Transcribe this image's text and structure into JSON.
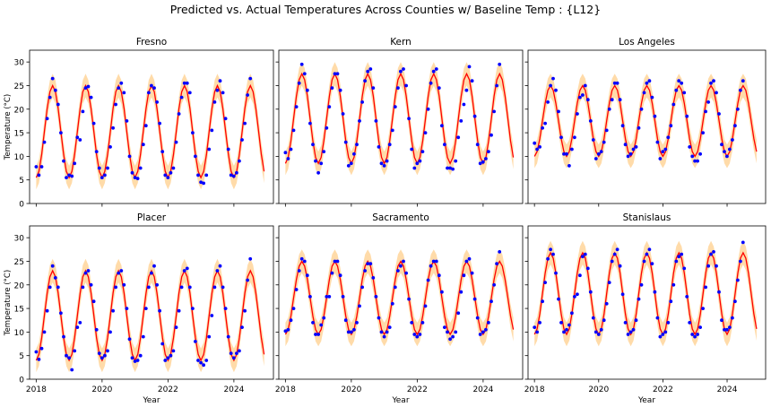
{
  "figure": {
    "title": "Predicted vs. Actual Temperatures Across Counties w/ Baseline Temp : {L12}",
    "xlabel": "Year",
    "ylabel": "Temperature (°C)",
    "colors": {
      "predicted_line": "#ff0000",
      "interval_band": "#ffd59a",
      "actual_points": "#0000ff"
    }
  },
  "chart_data": [
    {
      "type": "line",
      "title": "Fresno",
      "xlim": [
        2017.8,
        2025.2
      ],
      "ylim": [
        0,
        32.5
      ],
      "xticks": [
        2018,
        2020,
        2022,
        2024
      ],
      "yticks": [
        0,
        5,
        10,
        15,
        20,
        25,
        30
      ],
      "xlabel": "",
      "ylabel": "Temperature (°C)",
      "model": {
        "start": 2018.0,
        "end": 2024.92,
        "min_temp": 5.5,
        "max_temp": 25.0,
        "peak_month": 7,
        "band_halfwidth": 2.5
      },
      "series": [
        {
          "name": "Predicted",
          "style": "line",
          "description": "seasonal sinusoid (monthly)"
        },
        {
          "name": "Prediction interval",
          "style": "band"
        },
        {
          "name": "Actual",
          "style": "points",
          "x_start": 2018.0,
          "x_step": 0.0833,
          "values": [
            7.8,
            6.0,
            7.8,
            13.0,
            18.0,
            22.5,
            26.5,
            24.0,
            21.0,
            15.0,
            9.0,
            5.5,
            6.0,
            5.8,
            8.5,
            14.0,
            13.5,
            19.5,
            24.5,
            24.8,
            22.5,
            17.0,
            11.0,
            7.5,
            5.5,
            6.0,
            7.5,
            12.0,
            16.0,
            21.0,
            24.5,
            25.5,
            23.5,
            17.5,
            10.0,
            6.5,
            5.5,
            5.3,
            7.5,
            12.5,
            16.5,
            23.5,
            25.0,
            24.5,
            21.5,
            17.0,
            11.0,
            6.0,
            5.5,
            6.5,
            7.5,
            13.0,
            19.0,
            22.5,
            25.5,
            25.5,
            23.5,
            15.0,
            10.0,
            6.0,
            4.5,
            4.3,
            6.0,
            11.5,
            15.5,
            21.5,
            24.0,
            26.0,
            23.5,
            18.0,
            11.5,
            6.0,
            5.8,
            6.5,
            9.0,
            13.5,
            17.0,
            23.0,
            26.5
          ]
        }
      ]
    },
    {
      "type": "line",
      "title": "Kern",
      "xlim": [
        2017.8,
        2025.2
      ],
      "ylim": [
        0,
        32.5
      ],
      "xticks": [
        2018,
        2020,
        2022,
        2024
      ],
      "yticks": [
        0,
        5,
        10,
        15,
        20,
        25,
        30
      ],
      "xlabel": "",
      "ylabel": "",
      "model": {
        "start": 2018.0,
        "end": 2024.92,
        "min_temp": 8.5,
        "max_temp": 27.5,
        "peak_month": 7,
        "band_halfwidth": 2.5
      },
      "series": [
        {
          "name": "Predicted",
          "style": "line",
          "description": "seasonal sinusoid (monthly)"
        },
        {
          "name": "Prediction interval",
          "style": "band"
        },
        {
          "name": "Actual",
          "style": "points",
          "x_start": 2018.0,
          "x_step": 0.0833,
          "values": [
            10.8,
            9.5,
            11.5,
            15.5,
            20.5,
            25.5,
            29.5,
            27.5,
            24.0,
            17.0,
            12.5,
            9.0,
            6.5,
            8.5,
            11.0,
            16.0,
            20.5,
            24.5,
            27.5,
            27.5,
            24.0,
            19.0,
            13.0,
            8.0,
            8.5,
            10.5,
            12.5,
            17.5,
            21.5,
            26.0,
            28.0,
            28.5,
            24.5,
            17.5,
            12.0,
            8.5,
            8.0,
            9.0,
            12.5,
            15.5,
            20.5,
            24.5,
            28.0,
            28.5,
            25.0,
            18.0,
            11.5,
            7.5,
            8.5,
            9.0,
            11.0,
            15.0,
            20.0,
            25.5,
            28.0,
            28.5,
            24.5,
            16.5,
            12.5,
            7.5,
            7.5,
            7.3,
            9.0,
            14.0,
            17.5,
            21.0,
            24.0,
            29.0,
            26.0,
            18.5,
            12.5,
            8.5,
            8.8,
            9.5,
            11.0,
            14.5,
            19.5,
            25.0,
            29.5
          ]
        }
      ]
    },
    {
      "type": "line",
      "title": "Los Angeles",
      "xlim": [
        2017.8,
        2025.2
      ],
      "ylim": [
        0,
        32.5
      ],
      "xticks": [
        2018,
        2020,
        2022,
        2024
      ],
      "yticks": [
        0,
        5,
        10,
        15,
        20,
        25,
        30
      ],
      "xlabel": "",
      "ylabel": "",
      "model": {
        "start": 2018.0,
        "end": 2024.92,
        "min_temp": 10.0,
        "max_temp": 25.0,
        "peak_month": 7,
        "band_halfwidth": 2.5
      },
      "series": [
        {
          "name": "Predicted",
          "style": "line",
          "description": "seasonal sinusoid (monthly)"
        },
        {
          "name": "Prediction interval",
          "style": "band"
        },
        {
          "name": "Actual",
          "style": "points",
          "x_start": 2018.0,
          "x_step": 0.0833,
          "values": [
            12.8,
            11.5,
            12.0,
            16.0,
            17.0,
            21.5,
            25.0,
            26.5,
            24.0,
            19.5,
            14.0,
            10.5,
            10.5,
            8.0,
            11.5,
            14.0,
            19.0,
            22.5,
            23.0,
            25.0,
            22.0,
            17.5,
            13.5,
            9.5,
            10.5,
            11.0,
            13.0,
            15.5,
            20.0,
            22.0,
            25.5,
            25.5,
            22.0,
            16.5,
            12.5,
            10.0,
            10.5,
            11.5,
            12.0,
            16.0,
            20.0,
            23.5,
            25.5,
            26.0,
            22.5,
            18.5,
            13.0,
            9.5,
            11.0,
            11.5,
            14.0,
            16.5,
            21.0,
            24.0,
            26.0,
            25.5,
            23.5,
            18.5,
            12.0,
            10.0,
            9.0,
            9.0,
            10.5,
            15.0,
            19.5,
            21.5,
            25.5,
            26.0,
            23.5,
            19.0,
            12.5,
            11.0,
            10.0,
            11.5,
            13.5,
            16.5,
            20.0,
            24.0,
            26.0
          ]
        }
      ]
    },
    {
      "type": "line",
      "title": "Placer",
      "xlim": [
        2017.8,
        2025.2
      ],
      "ylim": [
        0,
        32.5
      ],
      "xticks": [
        2018,
        2020,
        2022,
        2024
      ],
      "yticks": [
        0,
        5,
        10,
        15,
        20,
        25,
        30
      ],
      "xlabel": "Year",
      "ylabel": "Temperature (°C)",
      "model": {
        "start": 2018.0,
        "end": 2024.92,
        "min_temp": 4.0,
        "max_temp": 23.0,
        "peak_month": 7,
        "band_halfwidth": 2.5
      },
      "series": [
        {
          "name": "Predicted",
          "style": "line",
          "description": "seasonal sinusoid (monthly)"
        },
        {
          "name": "Prediction interval",
          "style": "band"
        },
        {
          "name": "Actual",
          "style": "points",
          "x_start": 2018.0,
          "x_step": 0.0833,
          "values": [
            5.8,
            4.2,
            6.5,
            10.0,
            14.5,
            19.5,
            24.0,
            21.5,
            19.5,
            14.0,
            9.0,
            5.0,
            4.5,
            2.0,
            6.0,
            11.0,
            12.0,
            19.5,
            22.5,
            23.0,
            20.0,
            16.5,
            10.5,
            5.5,
            4.5,
            5.0,
            6.0,
            10.0,
            14.5,
            19.5,
            22.5,
            23.0,
            20.0,
            15.0,
            8.5,
            4.5,
            3.8,
            4.0,
            5.0,
            9.0,
            15.0,
            19.5,
            22.5,
            24.0,
            20.0,
            14.5,
            7.5,
            4.0,
            4.5,
            5.0,
            6.0,
            11.0,
            14.5,
            19.5,
            23.0,
            23.5,
            19.5,
            15.0,
            8.0,
            4.0,
            3.5,
            3.0,
            4.0,
            9.0,
            13.5,
            19.5,
            23.0,
            24.0,
            19.5,
            15.0,
            9.0,
            5.5,
            4.5,
            5.5,
            6.0,
            11.0,
            14.5,
            21.0,
            25.5
          ]
        }
      ]
    },
    {
      "type": "line",
      "title": "Sacramento",
      "xlim": [
        2017.8,
        2025.2
      ],
      "ylim": [
        0,
        32.5
      ],
      "xticks": [
        2018,
        2020,
        2022,
        2024
      ],
      "yticks": [
        0,
        5,
        10,
        15,
        20,
        25,
        30
      ],
      "xlabel": "Year",
      "ylabel": "",
      "model": {
        "start": 2018.0,
        "end": 2024.92,
        "min_temp": 9.5,
        "max_temp": 25.0,
        "peak_month": 7,
        "band_halfwidth": 2.5
      },
      "series": [
        {
          "name": "Predicted",
          "style": "line",
          "description": "seasonal sinusoid (monthly)"
        },
        {
          "name": "Prediction interval",
          "style": "band"
        },
        {
          "name": "Actual",
          "style": "points",
          "x_start": 2018.0,
          "x_step": 0.0833,
          "values": [
            10.2,
            10.5,
            12.5,
            15.0,
            19.0,
            23.0,
            25.5,
            25.0,
            22.0,
            17.5,
            12.0,
            9.5,
            9.5,
            11.5,
            13.0,
            17.5,
            17.5,
            22.5,
            25.0,
            25.0,
            22.0,
            17.5,
            12.5,
            10.0,
            10.0,
            10.5,
            12.0,
            15.5,
            19.5,
            23.0,
            24.5,
            24.5,
            21.5,
            17.5,
            13.0,
            10.0,
            9.0,
            10.0,
            11.0,
            16.0,
            19.5,
            23.0,
            24.0,
            25.0,
            22.5,
            17.0,
            12.0,
            9.5,
            9.0,
            9.5,
            12.0,
            15.5,
            21.0,
            24.0,
            25.0,
            25.0,
            22.0,
            18.5,
            11.0,
            10.0,
            8.5,
            9.0,
            10.0,
            14.0,
            18.5,
            22.0,
            25.0,
            25.5,
            22.5,
            17.0,
            13.0,
            9.5,
            10.0,
            10.5,
            12.0,
            16.5,
            20.0,
            24.5,
            27.0
          ]
        }
      ]
    },
    {
      "type": "line",
      "title": "Stanislaus",
      "xlim": [
        2017.8,
        2025.2
      ],
      "ylim": [
        0,
        32.5
      ],
      "xticks": [
        2018,
        2020,
        2022,
        2024
      ],
      "yticks": [
        0,
        5,
        10,
        15,
        20,
        25,
        30
      ],
      "xlabel": "Year",
      "ylabel": "",
      "model": {
        "start": 2018.0,
        "end": 2024.92,
        "min_temp": 9.5,
        "max_temp": 26.8,
        "peak_month": 7,
        "band_halfwidth": 2.5
      },
      "series": [
        {
          "name": "Predicted",
          "style": "line",
          "description": "seasonal sinusoid (monthly)"
        },
        {
          "name": "Prediction interval",
          "style": "band"
        },
        {
          "name": "Actual",
          "style": "points",
          "x_start": 2018.0,
          "x_step": 0.0833,
          "values": [
            11.0,
            10.0,
            12.0,
            16.5,
            20.5,
            25.5,
            27.5,
            26.5,
            22.5,
            17.0,
            12.0,
            10.0,
            10.5,
            11.5,
            14.0,
            17.5,
            18.0,
            22.0,
            26.0,
            26.5,
            23.5,
            18.5,
            13.0,
            10.0,
            9.5,
            10.5,
            12.5,
            16.0,
            20.5,
            25.0,
            26.5,
            27.5,
            24.0,
            18.0,
            12.0,
            9.5,
            10.0,
            10.5,
            12.5,
            17.0,
            20.0,
            25.0,
            26.5,
            27.5,
            24.5,
            18.5,
            13.0,
            9.0,
            9.5,
            10.0,
            12.0,
            16.5,
            20.0,
            25.0,
            26.0,
            26.5,
            23.5,
            17.5,
            12.0,
            9.5,
            9.0,
            9.5,
            11.0,
            15.0,
            19.5,
            24.0,
            26.5,
            27.0,
            24.0,
            18.5,
            12.5,
            10.5,
            10.5,
            11.0,
            13.0,
            16.5,
            21.0,
            25.0,
            29.0
          ]
        }
      ]
    }
  ]
}
